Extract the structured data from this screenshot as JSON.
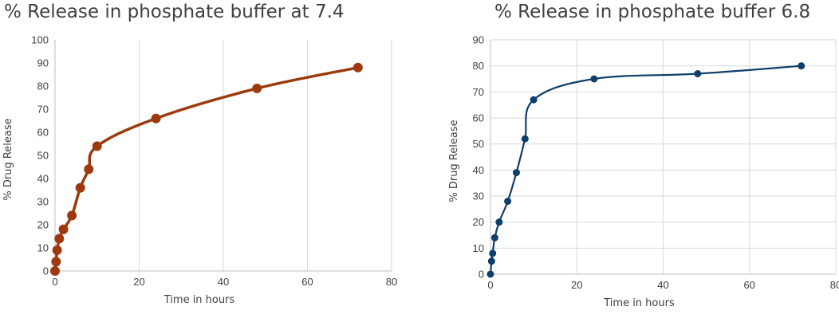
{
  "chart_data": [
    {
      "type": "line",
      "title": "% Release in phosphate buffer at 7.4",
      "xlabel": "Time in hours",
      "ylabel": "% Drug Release",
      "xlim": [
        0,
        80
      ],
      "ylim": [
        0,
        100
      ],
      "x_ticks": [
        "0",
        "20",
        "40",
        "60",
        "80"
      ],
      "y_ticks": [
        "0",
        "10",
        "20",
        "30",
        "40",
        "50",
        "60",
        "70",
        "80",
        "90",
        "100"
      ],
      "grid": "vertical",
      "color": "#9c3a0e",
      "series": [
        {
          "x": [
            0,
            0.25,
            0.5,
            1,
            2,
            4,
            6,
            8,
            10,
            24,
            48,
            72
          ],
          "y": [
            0,
            4,
            9,
            14,
            18,
            24,
            36,
            44,
            54,
            66,
            79,
            88
          ]
        }
      ]
    },
    {
      "type": "line",
      "title": "% Release in phosphate buffer 6.8",
      "xlabel": "Time in hours",
      "ylabel": "% Drug Release",
      "xlim": [
        0,
        80
      ],
      "ylim": [
        0,
        90
      ],
      "x_ticks": [
        "0",
        "20",
        "40",
        "60",
        "80"
      ],
      "y_ticks": [
        "0",
        "10",
        "20",
        "30",
        "40",
        "50",
        "60",
        "70",
        "80",
        "90"
      ],
      "grid": "both",
      "color": "#0e3f6b",
      "series": [
        {
          "x": [
            0,
            0.25,
            0.5,
            1,
            2,
            4,
            6,
            8,
            10,
            24,
            48,
            72
          ],
          "y": [
            0,
            5,
            8,
            14,
            20,
            28,
            39,
            52,
            67,
            75,
            77,
            80
          ]
        }
      ]
    }
  ]
}
